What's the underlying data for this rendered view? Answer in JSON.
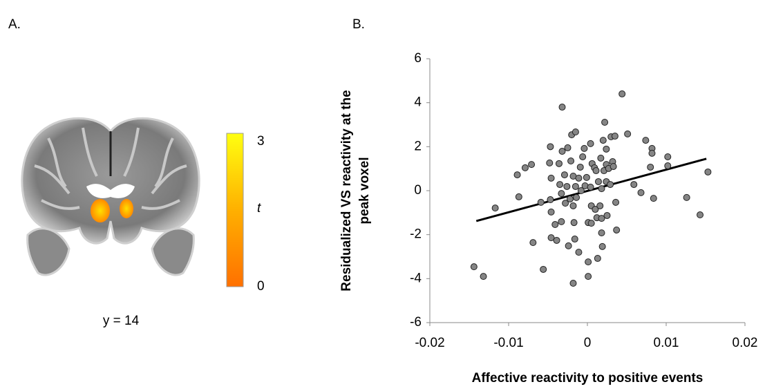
{
  "panel_a": {
    "label": "A.",
    "slice_label": "y = 14",
    "colorbar": {
      "label": "t",
      "lim": [
        0,
        3
      ],
      "ticks": [
        0,
        3
      ]
    }
  },
  "chart_data": {
    "type": "scatter",
    "label": "B.",
    "xlabel": "Affective reactivity to positive events",
    "ylabel_lines": [
      "Residualized VS reactivity at the",
      "peak voxel"
    ],
    "xlim": [
      -0.02,
      0.02
    ],
    "xticks": [
      -0.02,
      -0.01,
      0,
      0.01,
      0.02
    ],
    "ylim": [
      -6,
      6
    ],
    "yticks": [
      -6,
      -4,
      -2,
      0,
      2,
      4,
      6
    ],
    "color": "#858585",
    "x": [
      -0.0144,
      -0.0132,
      -0.0117,
      -0.0089,
      -0.0087,
      -0.0079,
      -0.0071,
      -0.0069,
      -0.0059,
      -0.0056,
      -0.0047,
      -0.0048,
      -0.0046,
      -0.0047,
      -0.0046,
      -0.0046,
      -0.0041,
      -0.0039,
      -0.0036,
      -0.0035,
      -0.0033,
      -0.0032,
      -0.0032,
      -0.0033,
      -0.0029,
      -0.0028,
      -0.0026,
      -0.0025,
      -0.0022,
      -0.0024,
      -0.0021,
      -0.002,
      -0.0018,
      -0.0018,
      -0.0017,
      -0.0016,
      -0.0018,
      -0.0015,
      -0.0015,
      -0.0014,
      -0.0011,
      -0.0011,
      -0.0009,
      -0.0008,
      -0.0006,
      -0.0004,
      -0.0003,
      -0.0001,
      0.0001,
      0.0001,
      0.0001,
      0.0004,
      0.0004,
      0.0005,
      0.0005,
      0.0006,
      0.0009,
      0.001,
      0.0011,
      0.0012,
      0.0013,
      0.0014,
      0.0016,
      0.0017,
      0.0018,
      0.0018,
      0.0018,
      0.0019,
      0.002,
      0.0021,
      0.0022,
      0.0024,
      0.0024,
      0.0024,
      0.0025,
      0.0027,
      0.0029,
      0.003,
      0.0032,
      0.0033,
      0.0035,
      0.0036,
      0.0037,
      0.0044,
      0.0051,
      0.0059,
      0.0068,
      0.0074,
      0.008,
      0.0082,
      0.0082,
      0.0084,
      0.0102,
      0.0102,
      0.0126,
      0.0143,
      0.0153
    ],
    "y": [
      -3.46,
      -3.9,
      -0.79,
      0.72,
      -0.28,
      1.04,
      1.19,
      -2.36,
      -0.53,
      -3.58,
      2.0,
      1.26,
      0.57,
      -0.41,
      -0.97,
      -2.14,
      -1.54,
      -2.26,
      1.23,
      0.28,
      -0.13,
      3.8,
      1.79,
      -1.41,
      0.72,
      -0.57,
      0.19,
      1.95,
      -0.38,
      -2.51,
      1.35,
      2.54,
      0.66,
      -0.69,
      -1.45,
      -2.2,
      -4.21,
      2.67,
      0.19,
      -0.31,
      -2.8,
      0.57,
      1.07,
      0,
      1.54,
      1.92,
      0.22,
      0.6,
      -1.45,
      -3.24,
      -3.9,
      2.14,
      0.16,
      -0.69,
      -1.48,
      1.23,
      1.04,
      -0.85,
      0.91,
      -1.23,
      -3.08,
      0.41,
      -0.69,
      1.48,
      0.09,
      -1.26,
      -1.92,
      -2.54,
      2.29,
      0.91,
      3.11,
      1.89,
      1.19,
      0.41,
      -1.13,
      1.01,
      0.28,
      2.45,
      1.32,
      1.1,
      2.48,
      -0.53,
      -1.79,
      4.4,
      2.58,
      0.28,
      -0.09,
      2.29,
      1.07,
      1.92,
      1.7,
      -0.35,
      1.13,
      1.54,
      -0.31,
      -1.1,
      0.85
    ],
    "trend_line": {
      "x": [
        -0.0141,
        0.0151
      ],
      "y": [
        -1.38,
        1.45
      ],
      "color": "#000000"
    }
  }
}
